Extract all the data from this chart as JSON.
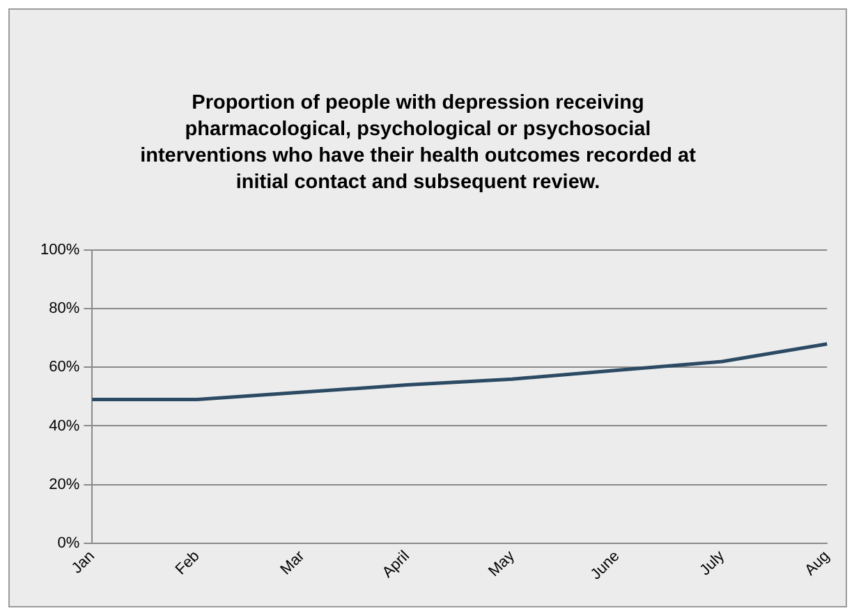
{
  "chart_data": {
    "type": "line",
    "title": "Proportion of people with depression receiving pharmacological, psychological or psychosocial interventions who have their health outcomes recorded at initial contact and subsequent review.",
    "categories": [
      "Jan",
      "Feb",
      "Mar",
      "April",
      "May",
      "June",
      "July",
      "Aug"
    ],
    "series": [
      {
        "color": "#2c4a63",
        "values": [
          49,
          49,
          51.5,
          54,
          56,
          59,
          62,
          68
        ]
      }
    ],
    "ylim": [
      0,
      100
    ],
    "yticks": [
      {
        "value": 0,
        "label": "0%"
      },
      {
        "value": 20,
        "label": "20%"
      },
      {
        "value": 40,
        "label": "40%"
      },
      {
        "value": 60,
        "label": "60%"
      },
      {
        "value": 80,
        "label": "80%"
      },
      {
        "value": 100,
        "label": "100%"
      }
    ],
    "grid": "y",
    "legend": false,
    "marker": "none",
    "line_style": "solid"
  }
}
